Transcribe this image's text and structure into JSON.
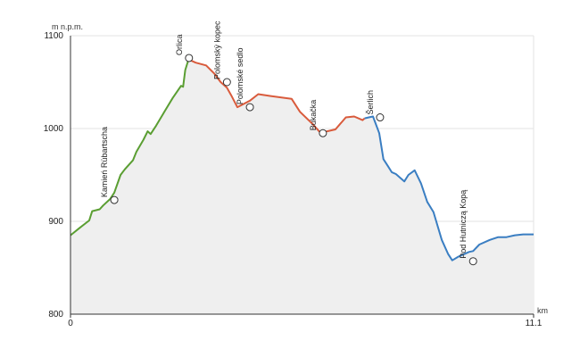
{
  "chart_data": {
    "type": "line",
    "ylabel": "m n.p.m.",
    "xlabel": "km",
    "xlim": [
      0,
      11.1
    ],
    "ylim": [
      800,
      1100
    ],
    "y_ticks": [
      "800",
      "900",
      "1000",
      "1100"
    ],
    "x_ticks": [
      "0",
      "11.1"
    ],
    "grid": true,
    "fill_color": "#efefef",
    "series": [
      {
        "color": "#5a9e32",
        "x": [
          0,
          0.22,
          0.45,
          0.52,
          0.7,
          0.78,
          0.95,
          1.05,
          1.2,
          1.3,
          1.5,
          1.58,
          1.75,
          1.85,
          1.92,
          2.05,
          2.25,
          2.45,
          2.65,
          2.7,
          2.75,
          2.84
        ],
        "y": [
          885,
          893,
          901,
          911,
          913,
          917,
          924,
          931,
          950,
          956,
          966,
          975,
          988,
          997,
          994,
          1003,
          1018,
          1033,
          1046,
          1045,
          1063,
          1076
        ]
      },
      {
        "color": "#d95b3c",
        "x": [
          2.84,
          2.9,
          3.0,
          3.25,
          3.45,
          3.6,
          3.75,
          3.85,
          4.0,
          4.3,
          4.5,
          4.8,
          5.3,
          5.5,
          5.8,
          6.0,
          6.15,
          6.35,
          6.6,
          6.8,
          7.0,
          7.05
        ],
        "y": [
          1076,
          1073,
          1071,
          1068,
          1059,
          1050,
          1044,
          1036,
          1023,
          1030,
          1037,
          1035,
          1032,
          1018,
          1005,
          995,
          997,
          999,
          1012,
          1013,
          1009,
          1011
        ]
      },
      {
        "color": "#3a7ec2",
        "x": [
          7.05,
          7.15,
          7.25,
          7.4,
          7.5,
          7.6,
          7.7,
          7.8,
          7.9,
          8.0,
          8.1,
          8.25,
          8.4,
          8.55,
          8.7,
          8.9,
          9.05,
          9.15,
          9.3,
          9.45,
          9.55,
          9.65,
          9.8,
          10.05,
          10.25,
          10.45,
          10.65,
          10.85,
          11.1
        ],
        "y": [
          1011,
          1012,
          1013,
          995,
          967,
          960,
          953,
          951,
          947,
          943,
          950,
          955,
          941,
          921,
          910,
          880,
          865,
          858,
          862,
          865,
          867,
          868,
          875,
          880,
          883,
          883,
          885,
          886,
          886
        ]
      }
    ],
    "points": [
      {
        "name": "Kamień Rübartscha",
        "x": 1.05,
        "y": 923
      },
      {
        "name": "Orlica",
        "x": 2.84,
        "y": 1076
      },
      {
        "name": "Polomský kopec",
        "x": 3.75,
        "y": 1050
      },
      {
        "name": "Polomské sedlo",
        "x": 4.3,
        "y": 1023
      },
      {
        "name": "Bukačka",
        "x": 6.05,
        "y": 995
      },
      {
        "name": "Šerlich",
        "x": 7.42,
        "y": 1012
      },
      {
        "name": "Pod Hutniczą Kopą",
        "x": 9.65,
        "y": 857
      }
    ]
  }
}
